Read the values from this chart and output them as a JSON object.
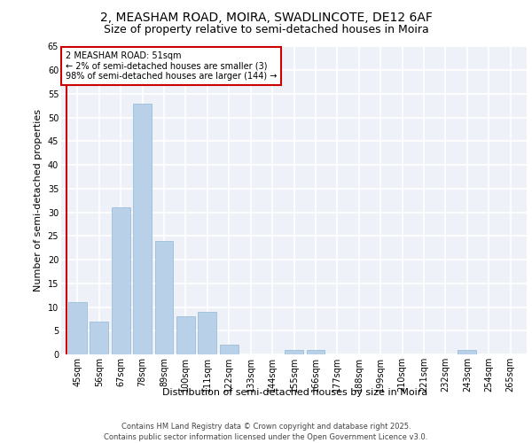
{
  "title1": "2, MEASHAM ROAD, MOIRA, SWADLINCOTE, DE12 6AF",
  "title2": "Size of property relative to semi-detached houses in Moira",
  "xlabel": "Distribution of semi-detached houses by size in Moira",
  "ylabel": "Number of semi-detached properties",
  "categories": [
    "45sqm",
    "56sqm",
    "67sqm",
    "78sqm",
    "89sqm",
    "100sqm",
    "111sqm",
    "122sqm",
    "133sqm",
    "144sqm",
    "155sqm",
    "166sqm",
    "177sqm",
    "188sqm",
    "199sqm",
    "210sqm",
    "221sqm",
    "232sqm",
    "243sqm",
    "254sqm",
    "265sqm"
  ],
  "values": [
    11,
    7,
    31,
    53,
    24,
    8,
    9,
    2,
    0,
    0,
    1,
    1,
    0,
    0,
    0,
    0,
    0,
    0,
    1,
    0,
    0
  ],
  "bar_color": "#b8d0e8",
  "bar_edge_color": "#90b8d8",
  "subject_label": "2 MEASHAM ROAD: 51sqm",
  "annotation_line1": "← 2% of semi-detached houses are smaller (3)",
  "annotation_line2": "98% of semi-detached houses are larger (144) →",
  "annotation_box_color": "#ffffff",
  "annotation_box_edge": "#cc0000",
  "red_line_color": "#cc0000",
  "ylim": [
    0,
    65
  ],
  "yticks": [
    0,
    5,
    10,
    15,
    20,
    25,
    30,
    35,
    40,
    45,
    50,
    55,
    60,
    65
  ],
  "footer1": "Contains HM Land Registry data © Crown copyright and database right 2025.",
  "footer2": "Contains public sector information licensed under the Open Government Licence v3.0.",
  "bg_color": "#eef2f8",
  "grid_color": "#ffffff",
  "title1_fontsize": 10,
  "title2_fontsize": 9,
  "axis_label_fontsize": 8,
  "tick_fontsize": 7,
  "footer_fontsize": 6,
  "annotation_fontsize": 7
}
